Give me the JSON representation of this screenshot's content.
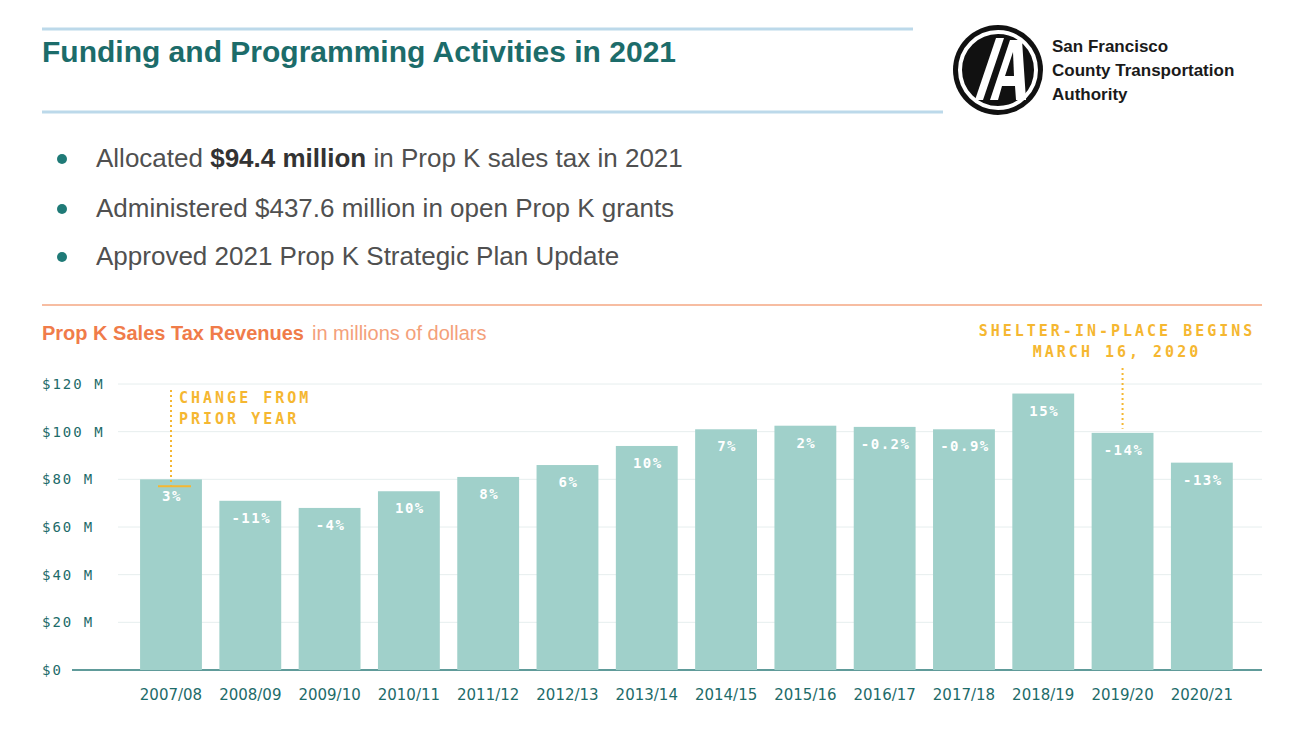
{
  "header": {
    "title": "Funding and Programming Activities in 2021",
    "organization": [
      "San Francisco",
      "County Transportation",
      "Authority"
    ]
  },
  "bullets": [
    {
      "segments": [
        {
          "text": "Allocated ",
          "bold": false
        },
        {
          "text": "$94.4 million",
          "bold": true
        },
        {
          "text": " in Prop K sales tax in 2021",
          "bold": false
        }
      ]
    },
    {
      "segments": [
        {
          "text": "Administered $437.6 million in open Prop K grants",
          "bold": false
        }
      ]
    },
    {
      "segments": [
        {
          "text": "Approved 2021 Prop K Strategic Plan Update",
          "bold": false
        }
      ]
    }
  ],
  "chart_data": {
    "type": "bar",
    "title": "Prop K Sales Tax Revenues",
    "subtitle": "in millions of dollars",
    "categories": [
      "2007/08",
      "2008/09",
      "2009/10",
      "2010/11",
      "2011/12",
      "2012/13",
      "2013/14",
      "2014/15",
      "2015/16",
      "2016/17",
      "2017/18",
      "2018/19",
      "2019/20",
      "2020/21"
    ],
    "values": [
      80,
      71,
      68,
      75,
      81,
      86,
      94,
      101,
      102.5,
      102,
      101,
      116,
      99.5,
      87
    ],
    "change_labels": [
      "3%",
      "-11%",
      "-4%",
      "10%",
      "8%",
      "6%",
      "10%",
      "7%",
      "2%",
      "-0.2%",
      "-0.9%",
      "15%",
      "-14%",
      "-13%"
    ],
    "color": "#a0d0ca",
    "ylim": [
      0,
      120
    ],
    "yticks": [
      {
        "value": 0,
        "label": "$0"
      },
      {
        "value": 20,
        "label": "$20 M"
      },
      {
        "value": 40,
        "label": "$40 M"
      },
      {
        "value": 60,
        "label": "$60 M"
      },
      {
        "value": 80,
        "label": "$80 M"
      },
      {
        "value": 100,
        "label": "$100 M"
      },
      {
        "value": 120,
        "label": "$120 M"
      }
    ],
    "grid": true,
    "annotations": [
      {
        "lines": [
          "CHANGE FROM",
          "PRIOR YEAR"
        ]
      },
      {
        "lines": [
          "SHELTER-IN-PLACE BEGINS",
          "MARCH 16, 2020"
        ]
      }
    ]
  }
}
